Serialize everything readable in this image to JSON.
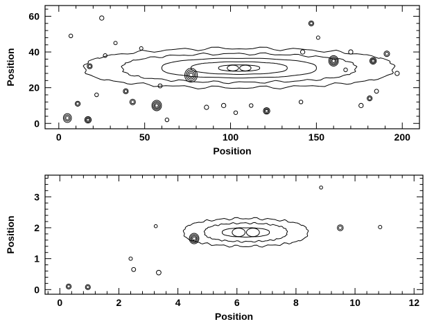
{
  "chart_data": [
    {
      "type": "contour",
      "xlabel": "Position",
      "ylabel": "Position",
      "xlim": [
        -8,
        210
      ],
      "ylim": [
        -3,
        66
      ],
      "xticks": [
        0,
        50,
        100,
        150,
        200
      ],
      "yticks": [
        0,
        20,
        40,
        60
      ],
      "galaxy": {
        "center": [
          105,
          31
        ],
        "contours": [
          {
            "level": 1,
            "half_length": 90,
            "half_height": 11
          },
          {
            "level": 2,
            "half_length": 68,
            "half_height": 8
          },
          {
            "level": 3,
            "half_length": 45,
            "half_height": 5.5
          },
          {
            "level": 4,
            "half_length": 28,
            "half_height": 3.5
          },
          {
            "level": 5,
            "half_length": 12,
            "half_height": 1.8
          }
        ]
      },
      "sources": [
        {
          "x": 77,
          "y": 27,
          "size": 3.5
        },
        {
          "x": 57,
          "y": 10,
          "size": 2.5
        },
        {
          "x": 160,
          "y": 35,
          "size": 2.5
        },
        {
          "x": 183,
          "y": 35,
          "size": 1.5
        },
        {
          "x": 5,
          "y": 3,
          "size": 2
        },
        {
          "x": 17,
          "y": 2,
          "size": 1.5
        },
        {
          "x": 121,
          "y": 7,
          "size": 1.5
        },
        {
          "x": 43,
          "y": 12,
          "size": 1.2
        },
        {
          "x": 11,
          "y": 11,
          "size": 1
        },
        {
          "x": 39,
          "y": 18,
          "size": 1
        },
        {
          "x": 18,
          "y": 32,
          "size": 1
        },
        {
          "x": 25,
          "y": 59,
          "size": 0.8
        },
        {
          "x": 147,
          "y": 56,
          "size": 1
        },
        {
          "x": 142,
          "y": 40,
          "size": 0.8
        },
        {
          "x": 191,
          "y": 39,
          "size": 1.2
        },
        {
          "x": 181,
          "y": 14,
          "size": 1
        },
        {
          "x": 197,
          "y": 28,
          "size": 0.8
        },
        {
          "x": 170,
          "y": 40,
          "size": 0.8
        },
        {
          "x": 176,
          "y": 10,
          "size": 0.8
        },
        {
          "x": 96,
          "y": 10,
          "size": 0.8
        },
        {
          "x": 86,
          "y": 9,
          "size": 0.8
        },
        {
          "x": 63,
          "y": 2,
          "size": 0.6
        },
        {
          "x": 103,
          "y": 6,
          "size": 0.6
        },
        {
          "x": 185,
          "y": 18,
          "size": 0.7
        },
        {
          "x": 167,
          "y": 30,
          "size": 0.6
        },
        {
          "x": 59,
          "y": 21,
          "size": 0.7
        },
        {
          "x": 27,
          "y": 38,
          "size": 0.6
        },
        {
          "x": 112,
          "y": 10,
          "size": 0.6
        },
        {
          "x": 141,
          "y": 12,
          "size": 0.6
        },
        {
          "x": 7,
          "y": 49,
          "size": 0.6
        },
        {
          "x": 33,
          "y": 45,
          "size": 0.5
        },
        {
          "x": 22,
          "y": 16,
          "size": 0.6
        },
        {
          "x": 48,
          "y": 42,
          "size": 0.5
        },
        {
          "x": 151,
          "y": 48,
          "size": 0.5
        }
      ]
    },
    {
      "type": "contour",
      "xlabel": "Position",
      "ylabel": "Position",
      "xlim": [
        -0.5,
        12.3
      ],
      "ylim": [
        -0.15,
        3.7
      ],
      "xticks": [
        0,
        2,
        4,
        6,
        8,
        10,
        12
      ],
      "yticks": [
        0,
        1,
        2,
        3
      ],
      "galaxy": {
        "center": [
          6.3,
          1.85
        ],
        "contours": [
          {
            "level": 1,
            "half_length": 2.1,
            "half_height": 0.45
          },
          {
            "level": 2,
            "half_length": 1.4,
            "half_height": 0.3
          },
          {
            "level": 3,
            "half_length": 0.8,
            "half_height": 0.15
          }
        ]
      },
      "sources": [
        {
          "x": 4.55,
          "y": 1.65,
          "size": 2.5
        },
        {
          "x": 9.5,
          "y": 2.0,
          "size": 1.3
        },
        {
          "x": 0.3,
          "y": 0.1,
          "size": 1
        },
        {
          "x": 0.95,
          "y": 0.08,
          "size": 1
        },
        {
          "x": 3.35,
          "y": 0.55,
          "size": 0.9
        },
        {
          "x": 2.5,
          "y": 0.65,
          "size": 0.7
        },
        {
          "x": 2.4,
          "y": 1.0,
          "size": 0.5
        },
        {
          "x": 3.25,
          "y": 2.05,
          "size": 0.4
        },
        {
          "x": 10.85,
          "y": 2.02,
          "size": 0.5
        },
        {
          "x": 8.85,
          "y": 3.3,
          "size": 0.4
        }
      ]
    }
  ]
}
